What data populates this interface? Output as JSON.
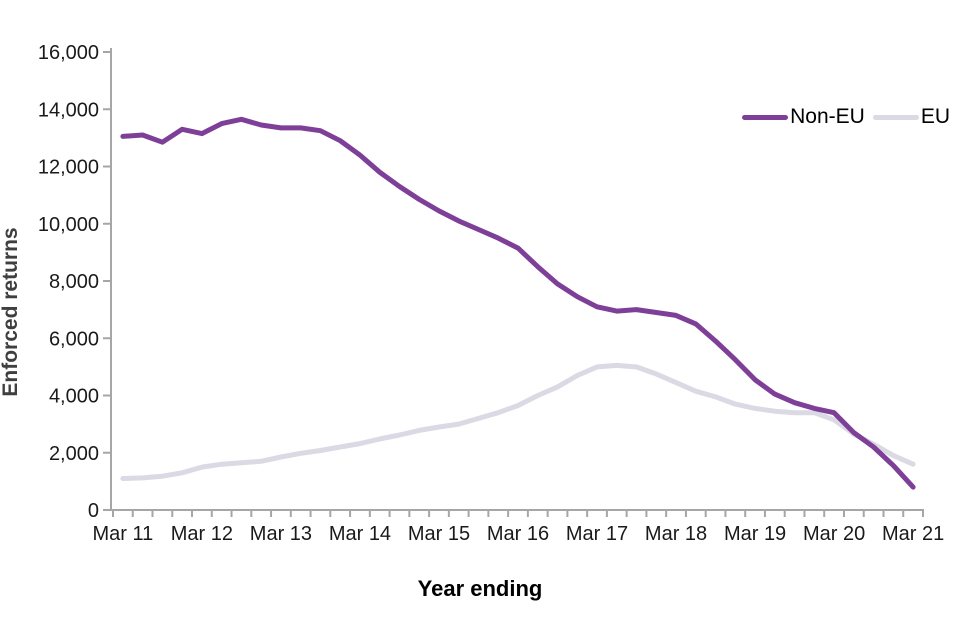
{
  "chart_data": {
    "type": "line",
    "title": "",
    "xlabel": "Year ending",
    "ylabel": "Enforced returns",
    "x_categories": [
      "Mar 11",
      "Jun 11",
      "Sep 11",
      "Dec 11",
      "Mar 12",
      "Jun 12",
      "Sep 12",
      "Dec 12",
      "Mar 13",
      "Jun 13",
      "Sep 13",
      "Dec 13",
      "Mar 14",
      "Jun 14",
      "Sep 14",
      "Dec 14",
      "Mar 15",
      "Jun 15",
      "Sep 15",
      "Dec 15",
      "Mar 16",
      "Jun 16",
      "Sep 16",
      "Dec 16",
      "Mar 17",
      "Jun 17",
      "Sep 17",
      "Dec 17",
      "Mar 18",
      "Jun 18",
      "Sep 18",
      "Dec 18",
      "Mar 19",
      "Jun 19",
      "Sep 19",
      "Dec 19",
      "Mar 20",
      "Jun 20",
      "Sep 20",
      "Dec 20",
      "Mar 21"
    ],
    "x_axis_tick_labels": [
      "Mar 11",
      "Mar 12",
      "Mar 13",
      "Mar 14",
      "Mar 15",
      "Mar 16",
      "Mar 17",
      "Mar 18",
      "Mar 19",
      "Mar 20",
      "Mar 21"
    ],
    "x_label_every_n_points": 4,
    "y_ticks": [
      0,
      2000,
      4000,
      6000,
      8000,
      10000,
      12000,
      14000,
      16000
    ],
    "y_tick_labels": [
      "0",
      "2,000",
      "4,000",
      "6,000",
      "8,000",
      "10,000",
      "12,000",
      "14,000",
      "16,000"
    ],
    "ylim": [
      0,
      16000
    ],
    "grid": "off",
    "legend_position": "top-right",
    "series": [
      {
        "name": "Non-EU",
        "color": "#7E3F98",
        "line_width": 5,
        "values": [
          13050,
          13100,
          12850,
          13300,
          13150,
          13500,
          13650,
          13450,
          13350,
          13350,
          13250,
          12900,
          12400,
          11800,
          11300,
          10850,
          10450,
          10100,
          9800,
          9500,
          9150,
          8500,
          7900,
          7450,
          7100,
          6950,
          7000,
          6900,
          6800,
          6500,
          5900,
          5250,
          4550,
          4050,
          3750,
          3550,
          3400,
          2700,
          2200,
          1550,
          800
        ]
      },
      {
        "name": "EU",
        "color": "#DBD9E3",
        "line_width": 5,
        "values": [
          1100,
          1120,
          1180,
          1300,
          1500,
          1600,
          1650,
          1700,
          1850,
          1980,
          2080,
          2200,
          2320,
          2480,
          2620,
          2780,
          2900,
          3000,
          3200,
          3400,
          3650,
          4000,
          4300,
          4700,
          5000,
          5050,
          5000,
          4750,
          4450,
          4150,
          3950,
          3700,
          3550,
          3450,
          3400,
          3400,
          3150,
          2650,
          2300,
          1900,
          1600
        ]
      }
    ],
    "axis_color": "#A6A6A6"
  }
}
